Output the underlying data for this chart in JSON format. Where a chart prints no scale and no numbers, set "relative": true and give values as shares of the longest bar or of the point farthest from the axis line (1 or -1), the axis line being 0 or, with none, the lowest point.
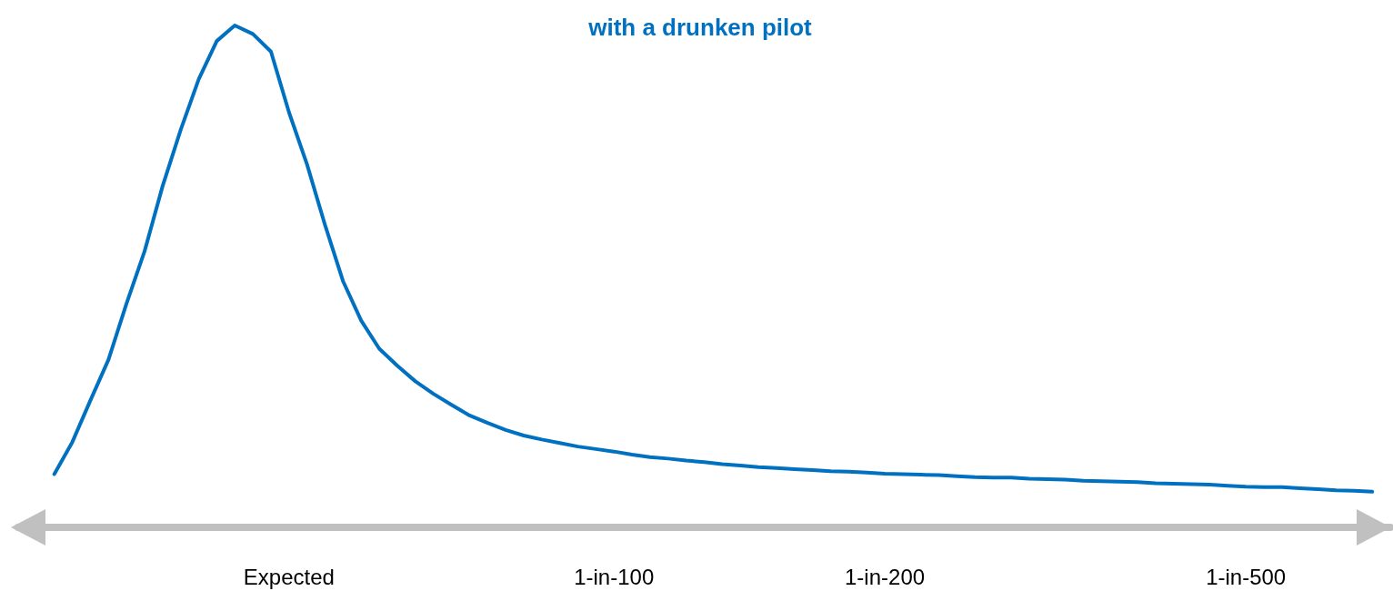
{
  "chart_data": {
    "type": "line",
    "title": "with a drunken pilot",
    "relative": true,
    "marker": "none",
    "categories": [
      null,
      null,
      null,
      null,
      null,
      null,
      null,
      null,
      null,
      null,
      null,
      null,
      null,
      null,
      null,
      "Expected",
      null,
      null,
      null,
      null,
      null,
      null,
      null,
      null,
      null,
      null,
      null,
      null,
      null,
      null,
      null,
      null,
      null,
      "1-in-100",
      null,
      null,
      null,
      null,
      null,
      null,
      null,
      null,
      null,
      null,
      null,
      null,
      null,
      null,
      "1-in-200",
      null,
      null,
      null,
      null,
      null,
      null,
      null,
      null,
      null,
      null,
      null,
      null,
      null,
      null,
      null,
      null,
      null,
      null,
      null,
      "1-in-500",
      null,
      null,
      null,
      null,
      null,
      null,
      null,
      null
    ],
    "series": [
      {
        "color": "#0070c0",
        "values": [
          null,
          null,
          0.106,
          0.17,
          0.253,
          0.334,
          0.446,
          0.55,
          0.68,
          0.792,
          0.893,
          0.969,
          1,
          0.983,
          0.948,
          0.827,
          0.723,
          0.602,
          0.49,
          0.412,
          0.356,
          0.322,
          0.291,
          0.266,
          0.244,
          0.223,
          0.208,
          0.194,
          0.183,
          0.175,
          0.168,
          0.161,
          0.156,
          0.151,
          0.145,
          0.14,
          0.137,
          0.133,
          0.13,
          0.126,
          0.123,
          0.12,
          0.118,
          0.116,
          0.114,
          0.112,
          0.111,
          0.109,
          0.107,
          0.106,
          0.105,
          0.104,
          0.102,
          0.1,
          0.099,
          0.099,
          0.097,
          0.096,
          0.095,
          0.093,
          0.092,
          0.091,
          0.09,
          0.088,
          0.087,
          0.086,
          0.085,
          0.083,
          0.081,
          0.08,
          0.08,
          0.078,
          0.076,
          0.074,
          0.073,
          0.071,
          null
        ]
      }
    ]
  }
}
